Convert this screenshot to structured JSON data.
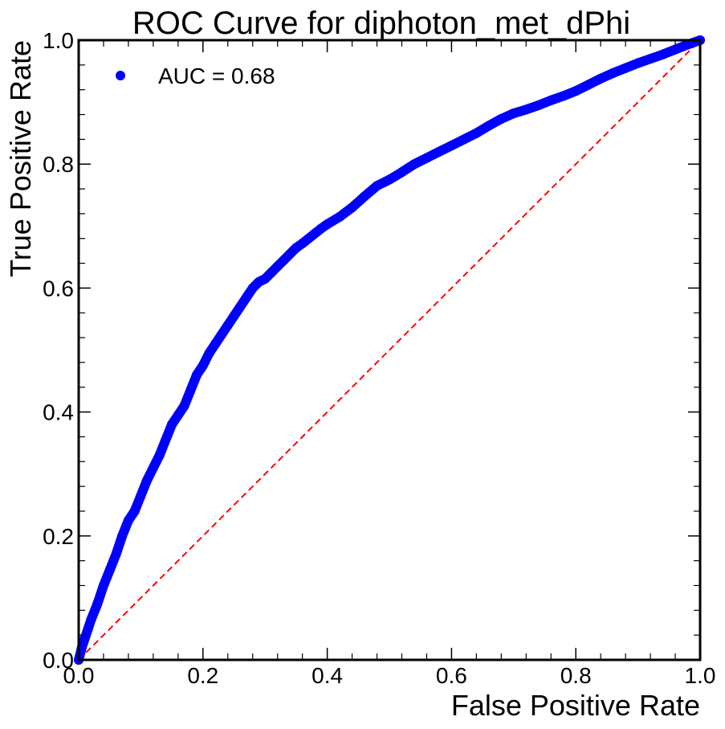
{
  "chart_data": {
    "type": "scatter",
    "title": "ROC Curve for diphoton_met_dPhi",
    "xlabel": "False Positive Rate",
    "ylabel": "True Positive Rate",
    "xlim": [
      0.0,
      1.0
    ],
    "ylim": [
      0.0,
      1.0
    ],
    "x_ticks": [
      "0.0",
      "0.2",
      "0.4",
      "0.6",
      "0.8",
      "1.0"
    ],
    "y_ticks": [
      "0.0",
      "0.2",
      "0.4",
      "0.6",
      "0.8",
      "1.0"
    ],
    "grid": false,
    "legend_position": "top-left",
    "series": [
      {
        "name": "AUC = 0.68",
        "color": "#0000ff",
        "marker": "circle",
        "points": [
          [
            0.0,
            0.0
          ],
          [
            0.005,
            0.02
          ],
          [
            0.01,
            0.035
          ],
          [
            0.015,
            0.05
          ],
          [
            0.02,
            0.065
          ],
          [
            0.03,
            0.09
          ],
          [
            0.04,
            0.12
          ],
          [
            0.05,
            0.145
          ],
          [
            0.06,
            0.17
          ],
          [
            0.07,
            0.2
          ],
          [
            0.08,
            0.225
          ],
          [
            0.09,
            0.24
          ],
          [
            0.1,
            0.265
          ],
          [
            0.11,
            0.29
          ],
          [
            0.12,
            0.31
          ],
          [
            0.13,
            0.33
          ],
          [
            0.14,
            0.355
          ],
          [
            0.15,
            0.38
          ],
          [
            0.16,
            0.395
          ],
          [
            0.17,
            0.41
          ],
          [
            0.18,
            0.435
          ],
          [
            0.19,
            0.46
          ],
          [
            0.2,
            0.475
          ],
          [
            0.21,
            0.495
          ],
          [
            0.22,
            0.51
          ],
          [
            0.23,
            0.525
          ],
          [
            0.24,
            0.54
          ],
          [
            0.25,
            0.555
          ],
          [
            0.26,
            0.57
          ],
          [
            0.27,
            0.585
          ],
          [
            0.28,
            0.6
          ],
          [
            0.29,
            0.61
          ],
          [
            0.3,
            0.615
          ],
          [
            0.31,
            0.625
          ],
          [
            0.32,
            0.635
          ],
          [
            0.33,
            0.645
          ],
          [
            0.34,
            0.655
          ],
          [
            0.35,
            0.665
          ],
          [
            0.36,
            0.672
          ],
          [
            0.37,
            0.68
          ],
          [
            0.38,
            0.688
          ],
          [
            0.39,
            0.696
          ],
          [
            0.4,
            0.703
          ],
          [
            0.42,
            0.715
          ],
          [
            0.44,
            0.73
          ],
          [
            0.46,
            0.748
          ],
          [
            0.48,
            0.765
          ],
          [
            0.5,
            0.775
          ],
          [
            0.52,
            0.787
          ],
          [
            0.54,
            0.8
          ],
          [
            0.56,
            0.81
          ],
          [
            0.58,
            0.82
          ],
          [
            0.6,
            0.83
          ],
          [
            0.62,
            0.84
          ],
          [
            0.64,
            0.85
          ],
          [
            0.66,
            0.862
          ],
          [
            0.68,
            0.873
          ],
          [
            0.7,
            0.882
          ],
          [
            0.72,
            0.888
          ],
          [
            0.74,
            0.895
          ],
          [
            0.76,
            0.903
          ],
          [
            0.78,
            0.91
          ],
          [
            0.8,
            0.918
          ],
          [
            0.82,
            0.928
          ],
          [
            0.84,
            0.938
          ],
          [
            0.86,
            0.947
          ],
          [
            0.88,
            0.955
          ],
          [
            0.9,
            0.963
          ],
          [
            0.92,
            0.97
          ],
          [
            0.94,
            0.977
          ],
          [
            0.96,
            0.985
          ],
          [
            0.98,
            0.993
          ],
          [
            1.0,
            1.0
          ]
        ]
      },
      {
        "name": "",
        "color": "#ff0000",
        "style": "dashed-line",
        "points": [
          [
            0.0,
            0.0
          ],
          [
            1.0,
            1.0
          ]
        ]
      }
    ]
  }
}
